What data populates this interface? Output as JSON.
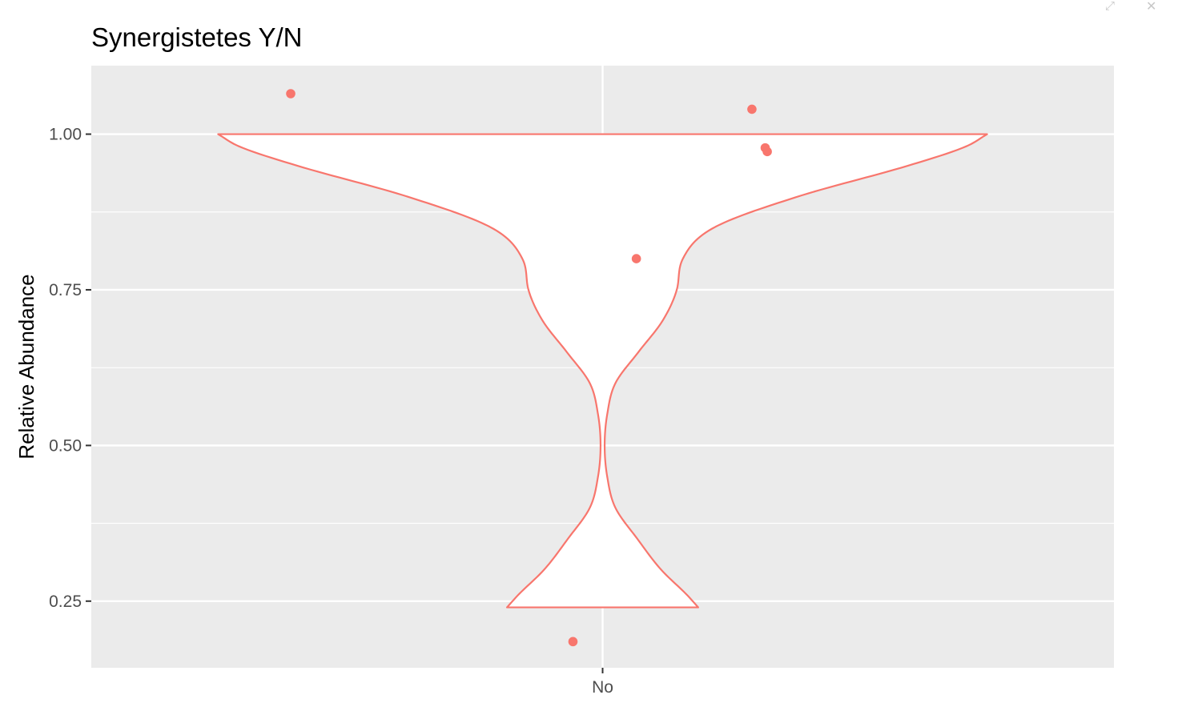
{
  "window": {
    "expand_icon": "expand-icon",
    "close_icon": "close-icon"
  },
  "chart_data": {
    "type": "violin",
    "title": "Synergistetes Y/N",
    "xlabel": "",
    "ylabel": "Relative Abundance",
    "categories": [
      "No"
    ],
    "ylim": [
      0.143,
      1.11
    ],
    "yticks": [
      0.25,
      0.5,
      0.75,
      1.0
    ],
    "ytick_labels": [
      "0.25",
      "0.50",
      "0.75",
      "1.00"
    ],
    "grid": true,
    "legend": "none",
    "colors": {
      "panel_bg": "#EBEBEB",
      "grid": "#FFFFFF",
      "violin_outline": "#F8766D",
      "violin_fill": "#FFFFFF",
      "points": "#F8766D"
    },
    "violin": {
      "category": "No",
      "y_min": 0.24,
      "y_max": 1.0,
      "density_profile": [
        {
          "y": 0.24,
          "w": 0.187
        },
        {
          "y": 0.26,
          "w": 0.165
        },
        {
          "y": 0.3,
          "w": 0.115
        },
        {
          "y": 0.35,
          "w": 0.068
        },
        {
          "y": 0.4,
          "w": 0.025
        },
        {
          "y": 0.45,
          "w": 0.009
        },
        {
          "y": 0.5,
          "w": 0.004
        },
        {
          "y": 0.55,
          "w": 0.009
        },
        {
          "y": 0.6,
          "w": 0.025
        },
        {
          "y": 0.65,
          "w": 0.07
        },
        {
          "y": 0.7,
          "w": 0.117
        },
        {
          "y": 0.75,
          "w": 0.145
        },
        {
          "y": 0.8,
          "w": 0.157
        },
        {
          "y": 0.85,
          "w": 0.218
        },
        {
          "y": 0.9,
          "w": 0.383
        },
        {
          "y": 0.95,
          "w": 0.6
        },
        {
          "y": 0.98,
          "w": 0.71
        },
        {
          "y": 1.0,
          "w": 0.752
        }
      ]
    },
    "points": [
      {
        "x_offset": -0.305,
        "y": 1.065
      },
      {
        "x_offset": 0.146,
        "y": 1.04
      },
      {
        "x_offset": 0.159,
        "y": 0.978
      },
      {
        "x_offset": 0.161,
        "y": 0.972
      },
      {
        "x_offset": 0.033,
        "y": 0.8
      },
      {
        "x_offset": -0.029,
        "y": 0.185
      }
    ]
  }
}
